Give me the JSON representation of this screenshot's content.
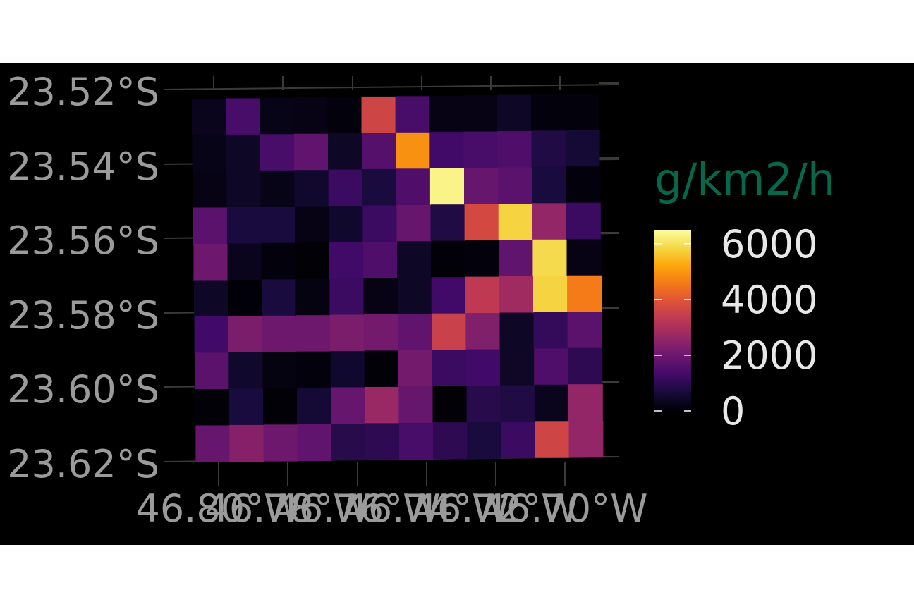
{
  "chart_data": {
    "type": "heatmap",
    "title": "",
    "xlabel": "",
    "ylabel": "",
    "x_tick_labels": [
      "46.80°W",
      "46.78°W",
      "46.76°W",
      "46.74°W",
      "46.72°W",
      "46.70°W"
    ],
    "y_tick_labels": [
      "23.52°S",
      "23.54°S",
      "23.56°S",
      "23.58°S",
      "23.60°S",
      "23.62°S"
    ],
    "legend": {
      "title": "g/km2/h",
      "placement": "right",
      "range": [
        0,
        6500
      ],
      "ticks": [
        0,
        2000,
        4000,
        6000
      ],
      "tick_labels": [
        "0",
        "2000",
        "4000",
        "6000"
      ],
      "colormap": "inferno"
    },
    "grid": false,
    "rows": 10,
    "cols": 12,
    "values": [
      [
        300,
        1400,
        250,
        200,
        100,
        3600,
        1400,
        200,
        200,
        400,
        100,
        80
      ],
      [
        250,
        400,
        1400,
        1800,
        400,
        1600,
        4900,
        1300,
        1400,
        1500,
        800,
        600
      ],
      [
        200,
        400,
        250,
        500,
        1200,
        700,
        1500,
        6300,
        1900,
        1700,
        700,
        100
      ],
      [
        1700,
        700,
        700,
        200,
        500,
        1200,
        1900,
        800,
        3700,
        5800,
        2600,
        1200
      ],
      [
        2000,
        300,
        80,
        30,
        1300,
        1500,
        400,
        50,
        80,
        1800,
        5900,
        200
      ],
      [
        400,
        20,
        700,
        150,
        1200,
        200,
        400,
        1300,
        3300,
        2800,
        5800,
        4600
      ],
      [
        1300,
        2200,
        2000,
        2000,
        2200,
        2100,
        1800,
        3500,
        2300,
        400,
        1100,
        1700
      ],
      [
        1700,
        500,
        150,
        80,
        500,
        50,
        2100,
        1200,
        1300,
        400,
        1500,
        1000
      ],
      [
        50,
        700,
        50,
        600,
        1900,
        2700,
        1900,
        30,
        900,
        800,
        300,
        2600
      ],
      [
        1900,
        2400,
        2000,
        1800,
        900,
        1000,
        1400,
        1000,
        700,
        1200,
        3600,
        2600
      ]
    ]
  }
}
